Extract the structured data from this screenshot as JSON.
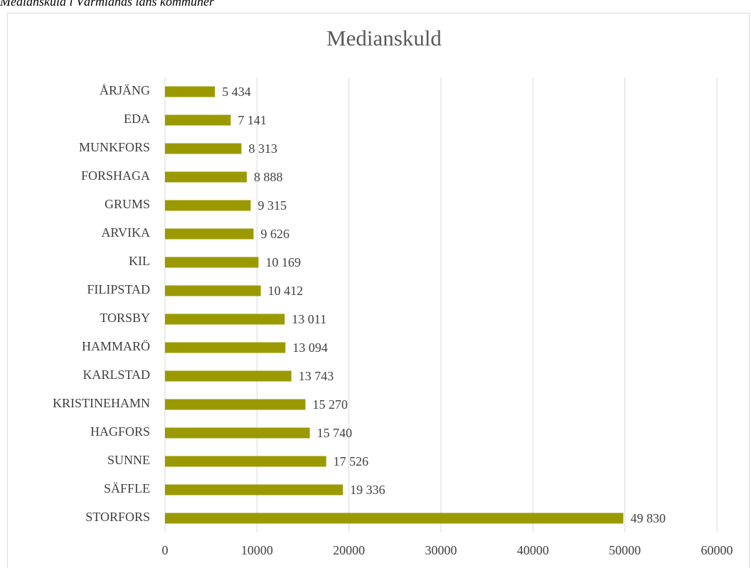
{
  "caption": "Medianskuld i Värmlands läns kommuner",
  "chart_data": {
    "type": "hbar",
    "title": "Medianskuld",
    "categories": [
      "ÅRJÄNG",
      "EDA",
      "MUNKFORS",
      "FORSHAGA",
      "GRUMS",
      "ARVIKA",
      "KIL",
      "FILIPSTAD",
      "TORSBY",
      "HAMMARÖ",
      "KARLSTAD",
      "KRISTINEHAMN",
      "HAGFORS",
      "SUNNE",
      "SÄFFLE",
      "STORFORS"
    ],
    "values": [
      5434,
      7141,
      8313,
      8888,
      9315,
      9626,
      10169,
      10412,
      13011,
      13094,
      13743,
      15270,
      15740,
      17526,
      19336,
      49830
    ],
    "value_labels": [
      "5 434",
      "7 141",
      "8 313",
      "8 888",
      "9 315",
      "9 626",
      "10 169",
      "10 412",
      "13 011",
      "13 094",
      "13 743",
      "15 270",
      "15 740",
      "17 526",
      "19 336",
      "49 830"
    ],
    "color": "#9a9a00",
    "xlim": [
      0,
      60000
    ],
    "xticks": [
      0,
      10000,
      20000,
      30000,
      40000,
      50000,
      60000
    ],
    "grid": true
  }
}
